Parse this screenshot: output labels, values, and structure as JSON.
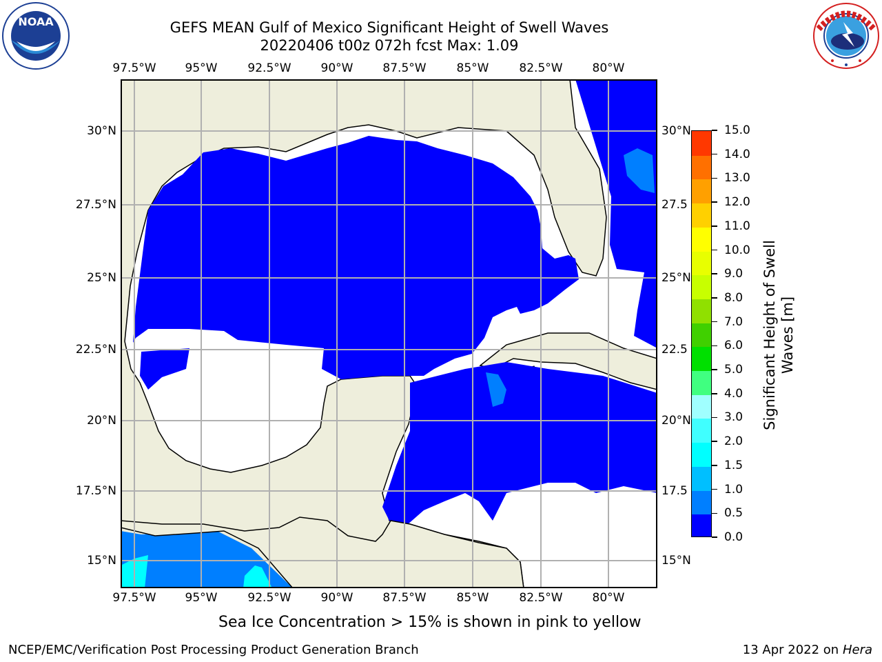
{
  "header": {
    "title_line1": "GEFS MEAN Gulf of Mexico Significant Height of Swell Waves",
    "title_line2": "20220406 t00z 072h fcst   Max: 1.09"
  },
  "logos": {
    "left": {
      "name": "noaa-logo",
      "text": "NOAA",
      "ring_text": "NATIONAL OCEANIC AND ATMOSPHERIC ADMINISTRATION · U.S. DEPARTMENT OF COMMERCE"
    },
    "right": {
      "name": "nws-logo",
      "ring_text": "NATIONAL WEATHER SERVICE"
    }
  },
  "map": {
    "lon_labels": [
      "97.5°W",
      "95°W",
      "92.5°W",
      "90°W",
      "87.5°W",
      "85°W",
      "82.5°W",
      "80°W"
    ],
    "lat_labels": [
      "30°N",
      "27.5°N",
      "25°N",
      "22.5°N",
      "20°N",
      "17.5°N",
      "15°N"
    ],
    "right_lat_labels": [
      "30°N",
      "27.5",
      "25°N",
      "22.5",
      "20°N",
      "17.5",
      "15°N"
    ],
    "land_color": "#eeeedc",
    "grid_color": "#b0b0b0"
  },
  "colorbar": {
    "label_line1": "Significant Height of Swell",
    "label_line2": "Waves [m]",
    "ticks": [
      "0.0",
      "0.5",
      "1.0",
      "1.5",
      "2.0",
      "3.0",
      "4.0",
      "5.0",
      "6.0",
      "7.0",
      "8.0",
      "9.0",
      "10.0",
      "11.0",
      "12.0",
      "13.0",
      "14.0",
      "15.0"
    ],
    "colors": [
      "#0000ff",
      "#007fff",
      "#00bfff",
      "#00ffff",
      "#40ffff",
      "#a0ffff",
      "#40ff80",
      "#00e000",
      "#40d000",
      "#90e000",
      "#c8ff00",
      "#e8ff00",
      "#ffff00",
      "#ffd000",
      "#ffa000",
      "#ff7000",
      "#ff3800",
      "#ff0000"
    ]
  },
  "footer": {
    "note": "Sea Ice Concentration > 15% is shown in pink to yellow",
    "credit_left": "NCEP/EMC/Verification Post Processing Product Generation Branch",
    "credit_right_prefix": "13 Apr 2022 on ",
    "credit_right_host": "Hera"
  }
}
